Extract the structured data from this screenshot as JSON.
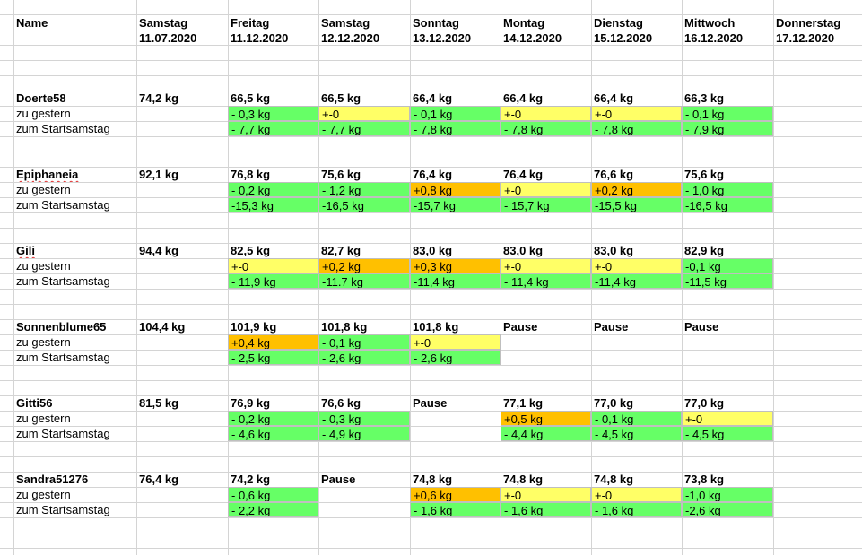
{
  "header": {
    "name_label": "Name",
    "columns": [
      {
        "day": "Samstag",
        "date": "11.07.2020"
      },
      {
        "day": "Freitag",
        "date": "11.12.2020"
      },
      {
        "day": "Samstag",
        "date": "12.12.2020"
      },
      {
        "day": "Sonntag",
        "date": "13.12.2020"
      },
      {
        "day": "Montag",
        "date": "14.12.2020"
      },
      {
        "day": "Dienstag",
        "date": "15.12.2020"
      },
      {
        "day": "Mittwoch",
        "date": "16.12.2020"
      },
      {
        "day": "Donnerstag",
        "date": "17.12.2020"
      }
    ]
  },
  "row_labels": {
    "daily": "zu gestern",
    "total": "zum Startsamstag"
  },
  "colors": {
    "green": "#66ff66",
    "yellow": "#ffff66",
    "orange": "#ffc000",
    "grid": "#d4d4d4"
  },
  "people": [
    {
      "name": "Doerte58",
      "spell": false,
      "weights": [
        "74,2 kg",
        "66,5 kg",
        "66,5 kg",
        "66,4 kg",
        "66,4 kg",
        "66,4 kg",
        "66,3 kg",
        ""
      ],
      "daily": [
        null,
        {
          "v": "- 0,3 kg",
          "c": "green"
        },
        {
          "v": "+-0",
          "c": "yellow"
        },
        {
          "v": "- 0,1 kg",
          "c": "green"
        },
        {
          "v": "+-0",
          "c": "yellow"
        },
        {
          "v": "+-0",
          "c": "yellow"
        },
        {
          "v": "- 0,1 kg",
          "c": "green"
        },
        null
      ],
      "total": [
        null,
        {
          "v": "- 7,7 kg",
          "c": "green"
        },
        {
          "v": "- 7,7 kg",
          "c": "green"
        },
        {
          "v": "- 7,8 kg",
          "c": "green"
        },
        {
          "v": "- 7,8 kg",
          "c": "green"
        },
        {
          "v": "- 7,8 kg",
          "c": "green"
        },
        {
          "v": "- 7,9 kg",
          "c": "green"
        },
        null
      ]
    },
    {
      "name": "Epiphaneia",
      "spell": true,
      "weights": [
        "92,1 kg",
        "76,8 kg",
        "75,6 kg",
        "76,4 kg",
        "76,4 kg",
        "76,6 kg",
        "75,6 kg",
        ""
      ],
      "daily": [
        null,
        {
          "v": "  - 0,2 kg",
          "c": "green"
        },
        {
          "v": " - 1,2 kg",
          "c": "green"
        },
        {
          "v": "+0,8 kg",
          "c": "orange"
        },
        {
          "v": "+-0",
          "c": "yellow"
        },
        {
          "v": "+0,2 kg",
          "c": "orange"
        },
        {
          "v": " - 1,0 kg",
          "c": "green"
        },
        null
      ],
      "total": [
        null,
        {
          "v": "-15,3 kg",
          "c": "green"
        },
        {
          "v": "-16,5 kg",
          "c": "green"
        },
        {
          "v": "-15,7 kg",
          "c": "green"
        },
        {
          "v": " - 15,7 kg",
          "c": "green"
        },
        {
          "v": "-15,5 kg",
          "c": "green"
        },
        {
          "v": "-16,5 kg",
          "c": "green"
        },
        null
      ]
    },
    {
      "name": "Gili",
      "spell": true,
      "weights": [
        "94,4 kg",
        "82,5 kg",
        "82,7 kg",
        "83,0 kg",
        "83,0 kg",
        "83,0 kg",
        "82,9 kg",
        ""
      ],
      "daily": [
        null,
        {
          "v": "+-0",
          "c": "yellow"
        },
        {
          "v": "+0,2 kg",
          "c": "orange"
        },
        {
          "v": "+0,3 kg",
          "c": "orange"
        },
        {
          "v": "+-0",
          "c": "yellow"
        },
        {
          "v": "+-0",
          "c": "yellow"
        },
        {
          "v": "-0,1 kg",
          "c": "green"
        },
        null
      ],
      "total": [
        null,
        {
          "v": " - 11,9 kg",
          "c": "green"
        },
        {
          "v": "-11.7 kg",
          "c": "green"
        },
        {
          "v": "-11,4 kg",
          "c": "green"
        },
        {
          "v": " - 11,4 kg",
          "c": "green"
        },
        {
          "v": "-11,4 kg",
          "c": "green"
        },
        {
          "v": "-11,5 kg",
          "c": "green"
        },
        null
      ]
    },
    {
      "name": "Sonnenblume65",
      "spell": false,
      "weights": [
        "104,4 kg",
        "101,9 kg",
        "101,8 kg",
        "101,8 kg",
        "Pause",
        "Pause",
        "Pause",
        ""
      ],
      "daily": [
        null,
        {
          "v": "+0,4 kg",
          "c": "orange"
        },
        {
          "v": " - 0,1 kg",
          "c": "green"
        },
        {
          "v": "+-0",
          "c": "yellow"
        },
        null,
        null,
        null,
        null
      ],
      "total": [
        null,
        {
          "v": " - 2,5 kg",
          "c": "green"
        },
        {
          "v": " - 2,6 kg",
          "c": "green"
        },
        {
          "v": " - 2,6 kg",
          "c": "green"
        },
        null,
        null,
        null,
        null
      ]
    },
    {
      "name": "Gitti56",
      "spell": false,
      "weights": [
        "81,5 kg",
        "76,9 kg",
        "76,6 kg",
        "Pause",
        "77,1 kg",
        "77,0 kg",
        "77,0 kg",
        ""
      ],
      "daily": [
        null,
        {
          "v": " - 0,2 kg",
          "c": "green"
        },
        {
          "v": " - 0,3 kg",
          "c": "green"
        },
        null,
        {
          "v": "+0,5 kg",
          "c": "orange"
        },
        {
          "v": " - 0,1 kg",
          "c": "green"
        },
        {
          "v": "+-0",
          "c": "yellow"
        },
        null
      ],
      "total": [
        null,
        {
          "v": " - 4,6 kg",
          "c": "green"
        },
        {
          "v": " - 4,9 kg",
          "c": "green"
        },
        null,
        {
          "v": " - 4,4 kg",
          "c": "green"
        },
        {
          "v": " - 4,5 kg",
          "c": "green"
        },
        {
          "v": " - 4,5 kg",
          "c": "green"
        },
        null
      ]
    },
    {
      "name": "Sandra51276",
      "spell": false,
      "weights": [
        "76,4 kg",
        "74,2 kg",
        "Pause",
        "74,8 kg",
        "74,8 kg",
        "74,8 kg",
        "73,8 kg",
        ""
      ],
      "daily": [
        null,
        {
          "v": " - 0,6 kg",
          "c": "green"
        },
        null,
        {
          "v": "+0,6 kg",
          "c": "orange"
        },
        {
          "v": "+-0",
          "c": "yellow"
        },
        {
          "v": "+-0",
          "c": "yellow"
        },
        {
          "v": "-1,0 kg",
          "c": "green"
        },
        null
      ],
      "total": [
        null,
        {
          "v": " - 2,2 kg",
          "c": "green"
        },
        null,
        {
          "v": " - 1,6 kg",
          "c": "green"
        },
        {
          "v": " - 1,6 kg",
          "c": "green"
        },
        {
          "v": " - 1,6 kg",
          "c": "green"
        },
        {
          "v": "-2,6 kg",
          "c": "green"
        },
        null
      ]
    }
  ]
}
